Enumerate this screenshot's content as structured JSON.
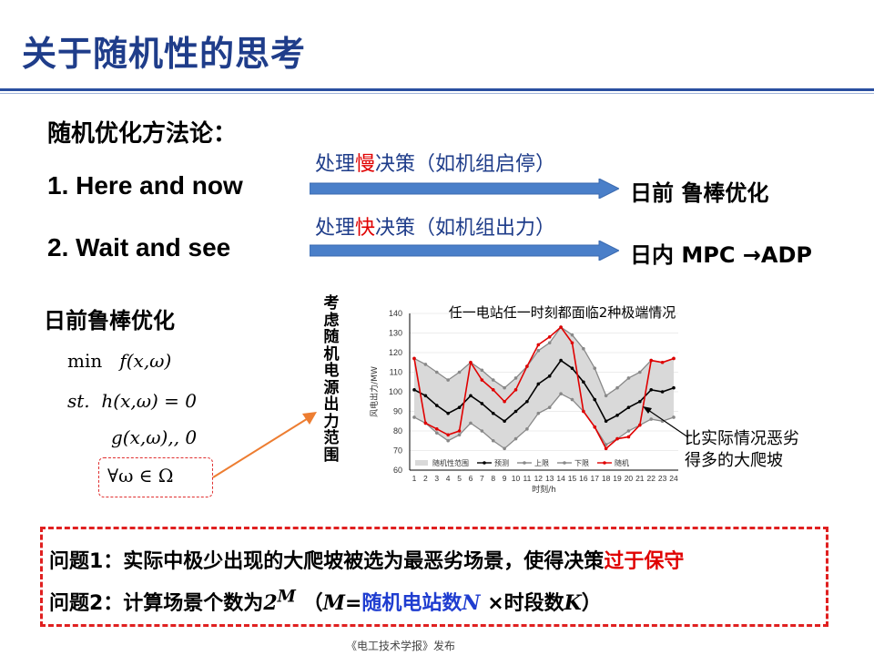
{
  "title": "关于随机性的思考",
  "heading": "随机优化方法论：",
  "items": [
    {
      "label": "1.  Here and now",
      "arrow_pre": "处理",
      "arrow_accent": "慢",
      "arrow_post": "决策（如机组启停）",
      "result": "日前  鲁棒优化"
    },
    {
      "label": "2.  Wait and see",
      "arrow_pre": "处理",
      "arrow_accent": "快",
      "arrow_post": "决策（如机组出力）",
      "result": "日内  MPC →ADP"
    }
  ],
  "robust": {
    "title": "日前鲁棒优化",
    "eq1_a": "min",
    "eq1_b": "f(x,ω)",
    "eq2_a": "st.",
    "eq2_b": "h(x,ω) = 0",
    "eq3": "g(x,ω),, 0",
    "eq4": "∀ω ∈ Ω"
  },
  "vertical_label": "考虑随机电源出力范围",
  "chart_data": {
    "type": "line",
    "title": "任一电站任一时刻都面临2种极端情况",
    "ylabel": "风电出力/MW",
    "xlabel": "时刻/h",
    "ylim": [
      60,
      140
    ],
    "yticks": [
      60,
      70,
      80,
      90,
      100,
      110,
      120,
      130,
      140
    ],
    "x": [
      1,
      2,
      3,
      4,
      5,
      6,
      7,
      8,
      9,
      10,
      11,
      12,
      13,
      14,
      15,
      16,
      17,
      18,
      19,
      20,
      21,
      22,
      23,
      24
    ],
    "series": [
      {
        "name": "随机性范围",
        "kind": "band"
      },
      {
        "name": "预测",
        "color": "#000000",
        "values": [
          101,
          98,
          93,
          89,
          92,
          98,
          94,
          89,
          85,
          90,
          95,
          104,
          108,
          116,
          112,
          105,
          96,
          85,
          88,
          92,
          95,
          101,
          100,
          102
        ]
      },
      {
        "name": "上限",
        "color": "#888888",
        "values": [
          117,
          114,
          110,
          106,
          110,
          115,
          111,
          106,
          102,
          107,
          113,
          121,
          125,
          133,
          129,
          122,
          112,
          98,
          102,
          107,
          110,
          116,
          115,
          117
        ]
      },
      {
        "name": "下限",
        "color": "#888888",
        "values": [
          87,
          84,
          79,
          75,
          78,
          84,
          80,
          75,
          71,
          76,
          81,
          89,
          92,
          99,
          96,
          90,
          82,
          73,
          76,
          80,
          83,
          86,
          85,
          87
        ]
      },
      {
        "name": "随机",
        "color": "#e00000",
        "values": [
          117,
          84,
          81,
          78,
          80,
          115,
          106,
          101,
          95,
          101,
          113,
          124,
          128,
          133,
          125,
          90,
          82,
          71,
          76,
          77,
          83,
          116,
          115,
          117
        ]
      }
    ]
  },
  "annotation": "比实际情况恶劣\n得多的大爬坡",
  "q1_a": "问题1：实际中极少出现的大爬坡被选为最恶劣场景，使得决策",
  "q1_b": "过于保守",
  "q2_a": "问题2：计算场景个数为",
  "q2_b": "2",
  "q2_c": "M",
  "q2_d": "（",
  "q2_e": "M",
  "q2_f": "=",
  "q2_g": "随机电站数",
  "q2_h": "N",
  "q2_i": " ×时段数",
  "q2_j": "K",
  "q2_k": "）",
  "footer": "《电工技术学报》发布",
  "colors": {
    "title": "#1f3d8a",
    "accent": "#e00000",
    "arrow": "#4a7fc9",
    "band": "#d9d9d9"
  }
}
